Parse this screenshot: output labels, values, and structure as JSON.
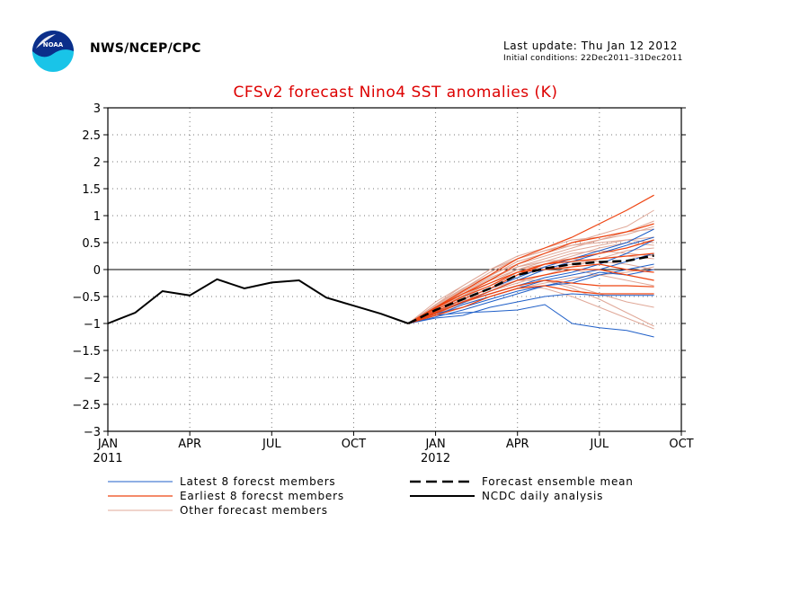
{
  "header": {
    "organization": "NWS/NCEP/CPC",
    "last_update": "Last update: Thu Jan 12 2012",
    "initial_conditions": "Initial conditions: 22Dec2011–31Dec2011",
    "logo_icon": "noaa-logo-icon"
  },
  "chart_data": {
    "type": "line",
    "title": "CFSv2 forecast Nino4 SST anomalies (K)",
    "xlabel": "",
    "ylabel": "",
    "ylim": [
      -3,
      3
    ],
    "yticks": [
      3,
      2.5,
      2,
      1.5,
      1,
      0.5,
      0,
      -0.5,
      -1,
      -1.5,
      -2,
      -2.5,
      -3
    ],
    "ytick_labels": [
      "3",
      "2.5",
      "2",
      "1.5",
      "1",
      "0.5",
      "0",
      "−0.5",
      "−1",
      "−1.5",
      "−2",
      "−2.5",
      "−3"
    ],
    "xlim": [
      "2011-01",
      "2012-10"
    ],
    "xticks": [
      {
        "month": "2011-01",
        "label": "JAN",
        "year_label": "2011"
      },
      {
        "month": "2011-04",
        "label": "APR",
        "year_label": ""
      },
      {
        "month": "2011-07",
        "label": "JUL",
        "year_label": ""
      },
      {
        "month": "2011-10",
        "label": "OCT",
        "year_label": ""
      },
      {
        "month": "2012-01",
        "label": "JAN",
        "year_label": "2012"
      },
      {
        "month": "2012-04",
        "label": "APR",
        "year_label": ""
      },
      {
        "month": "2012-07",
        "label": "JUL",
        "year_label": ""
      },
      {
        "month": "2012-10",
        "label": "OCT",
        "year_label": ""
      }
    ],
    "grid": true,
    "zero_line": true,
    "colors": {
      "latest": "#1f5fc8",
      "earliest": "#ee4411",
      "other": "#e0a898",
      "mean": "#000000",
      "analysis": "#000000",
      "title": "#dd0000"
    },
    "legend": [
      {
        "label": "Latest 8 forecst members",
        "style": "latest"
      },
      {
        "label": "Earliest 8 forecst members",
        "style": "earliest"
      },
      {
        "label": "Other forecast members",
        "style": "other"
      },
      {
        "label": "Forecast ensemble mean",
        "style": "mean"
      },
      {
        "label": "NCDC daily analysis",
        "style": "analysis"
      }
    ],
    "analysis": {
      "x": [
        "2011-01",
        "2011-02",
        "2011-03",
        "2011-04",
        "2011-05",
        "2011-06",
        "2011-07",
        "2011-08",
        "2011-09",
        "2011-10",
        "2011-11",
        "2011-12"
      ],
      "y": [
        -1.0,
        -0.8,
        -0.4,
        -0.48,
        -0.18,
        -0.35,
        -0.24,
        -0.2,
        -0.52,
        -0.67,
        -0.82,
        -1.0
      ]
    },
    "ensemble_mean": {
      "x": [
        "2011-12",
        "2012-01",
        "2012-02",
        "2012-03",
        "2012-04",
        "2012-05",
        "2012-06",
        "2012-07",
        "2012-08",
        "2012-09"
      ],
      "y": [
        -1.0,
        -0.75,
        -0.55,
        -0.35,
        -0.1,
        0.02,
        0.1,
        0.14,
        0.16,
        0.26
      ]
    },
    "members_x": [
      "2011-12",
      "2012-01",
      "2012-02",
      "2012-03",
      "2012-04",
      "2012-05",
      "2012-06",
      "2012-07",
      "2012-08",
      "2012-09"
    ],
    "latest_members": [
      [
        -1.0,
        -0.85,
        -0.8,
        -0.78,
        -0.75,
        -0.65,
        -1.0,
        -1.08,
        -1.13,
        -1.25
      ],
      [
        -1.0,
        -0.9,
        -0.85,
        -0.7,
        -0.6,
        -0.5,
        -0.45,
        -0.48,
        -0.48,
        -0.48
      ],
      [
        -1.0,
        -0.82,
        -0.7,
        -0.55,
        -0.4,
        -0.3,
        -0.25,
        -0.1,
        0.0,
        0.1
      ],
      [
        -1.0,
        -0.8,
        -0.6,
        -0.45,
        -0.3,
        -0.15,
        -0.05,
        0.1,
        0.3,
        0.55
      ],
      [
        -1.0,
        -0.78,
        -0.55,
        -0.35,
        -0.15,
        0.05,
        0.2,
        0.35,
        0.5,
        0.75
      ],
      [
        -1.0,
        -0.85,
        -0.65,
        -0.5,
        -0.35,
        -0.2,
        -0.1,
        0.0,
        0.15,
        0.3
      ],
      [
        -1.0,
        -0.88,
        -0.75,
        -0.6,
        -0.45,
        -0.3,
        -0.2,
        -0.05,
        -0.1,
        0.0
      ],
      [
        -1.0,
        -0.8,
        -0.62,
        -0.4,
        -0.2,
        0.0,
        0.15,
        0.3,
        0.45,
        0.6
      ]
    ],
    "earliest_members": [
      [
        -1.0,
        -0.7,
        -0.4,
        -0.1,
        0.2,
        0.4,
        0.6,
        0.85,
        1.1,
        1.38
      ],
      [
        -1.0,
        -0.72,
        -0.45,
        -0.2,
        0.1,
        0.3,
        0.5,
        0.6,
        0.7,
        0.85
      ],
      [
        -1.0,
        -0.78,
        -0.55,
        -0.35,
        -0.1,
        0.1,
        0.2,
        0.3,
        0.4,
        0.55
      ],
      [
        -1.0,
        -0.75,
        -0.5,
        -0.3,
        -0.05,
        0.1,
        0.15,
        0.2,
        0.25,
        0.3
      ],
      [
        -1.0,
        -0.8,
        -0.6,
        -0.45,
        -0.3,
        -0.2,
        -0.25,
        -0.3,
        -0.3,
        -0.32
      ],
      [
        -1.0,
        -0.85,
        -0.7,
        -0.5,
        -0.35,
        -0.3,
        -0.4,
        -0.45,
        -0.45,
        -0.45
      ],
      [
        -1.0,
        -0.7,
        -0.45,
        -0.25,
        -0.05,
        0.0,
        0.05,
        0.1,
        0.0,
        -0.05
      ],
      [
        -1.0,
        -0.82,
        -0.6,
        -0.4,
        -0.2,
        -0.1,
        0.0,
        0.0,
        -0.1,
        -0.2
      ]
    ],
    "other_members": [
      [
        -1.0,
        -0.6,
        -0.3,
        0.0,
        0.2,
        0.35,
        0.5,
        0.65,
        0.8,
        1.1
      ],
      [
        -1.0,
        -0.65,
        -0.35,
        -0.1,
        0.1,
        0.25,
        0.4,
        0.55,
        0.7,
        0.9
      ],
      [
        -1.0,
        -0.7,
        -0.4,
        -0.15,
        0.05,
        0.2,
        0.35,
        0.45,
        0.55,
        0.6
      ],
      [
        -1.0,
        -0.75,
        -0.5,
        -0.25,
        0.0,
        0.15,
        0.2,
        0.15,
        0.1,
        0.0
      ],
      [
        -1.0,
        -0.8,
        -0.6,
        -0.45,
        -0.3,
        -0.35,
        -0.5,
        -0.7,
        -0.9,
        -1.1
      ],
      [
        -1.0,
        -0.78,
        -0.55,
        -0.35,
        -0.2,
        -0.2,
        -0.35,
        -0.55,
        -0.8,
        -1.05
      ],
      [
        -1.0,
        -0.7,
        -0.45,
        -0.2,
        0.0,
        0.1,
        0.25,
        0.4,
        0.5,
        0.45
      ],
      [
        -1.0,
        -0.68,
        -0.38,
        -0.12,
        0.15,
        0.3,
        0.45,
        0.55,
        0.65,
        0.8
      ],
      [
        -1.0,
        -0.82,
        -0.65,
        -0.5,
        -0.35,
        -0.25,
        -0.15,
        -0.1,
        -0.05,
        0.05
      ],
      [
        -1.0,
        -0.75,
        -0.52,
        -0.3,
        -0.1,
        0.0,
        0.1,
        0.2,
        0.25,
        0.2
      ],
      [
        -1.0,
        -0.72,
        -0.48,
        -0.25,
        -0.05,
        0.05,
        0.0,
        -0.1,
        -0.2,
        -0.3
      ],
      [
        -1.0,
        -0.66,
        -0.36,
        -0.05,
        0.2,
        0.35,
        0.45,
        0.5,
        0.55,
        0.5
      ],
      [
        -1.0,
        -0.78,
        -0.58,
        -0.4,
        -0.25,
        -0.1,
        0.05,
        0.2,
        0.35,
        0.4
      ],
      [
        -1.0,
        -0.7,
        -0.42,
        -0.18,
        0.05,
        0.15,
        0.3,
        0.35,
        0.3,
        0.25
      ],
      [
        -1.0,
        -0.8,
        -0.62,
        -0.45,
        -0.3,
        -0.2,
        -0.3,
        -0.45,
        -0.6,
        -0.7
      ],
      [
        -1.0,
        -0.65,
        -0.3,
        0.0,
        0.25,
        0.4,
        0.55,
        0.6,
        0.7,
        0.75
      ]
    ]
  }
}
